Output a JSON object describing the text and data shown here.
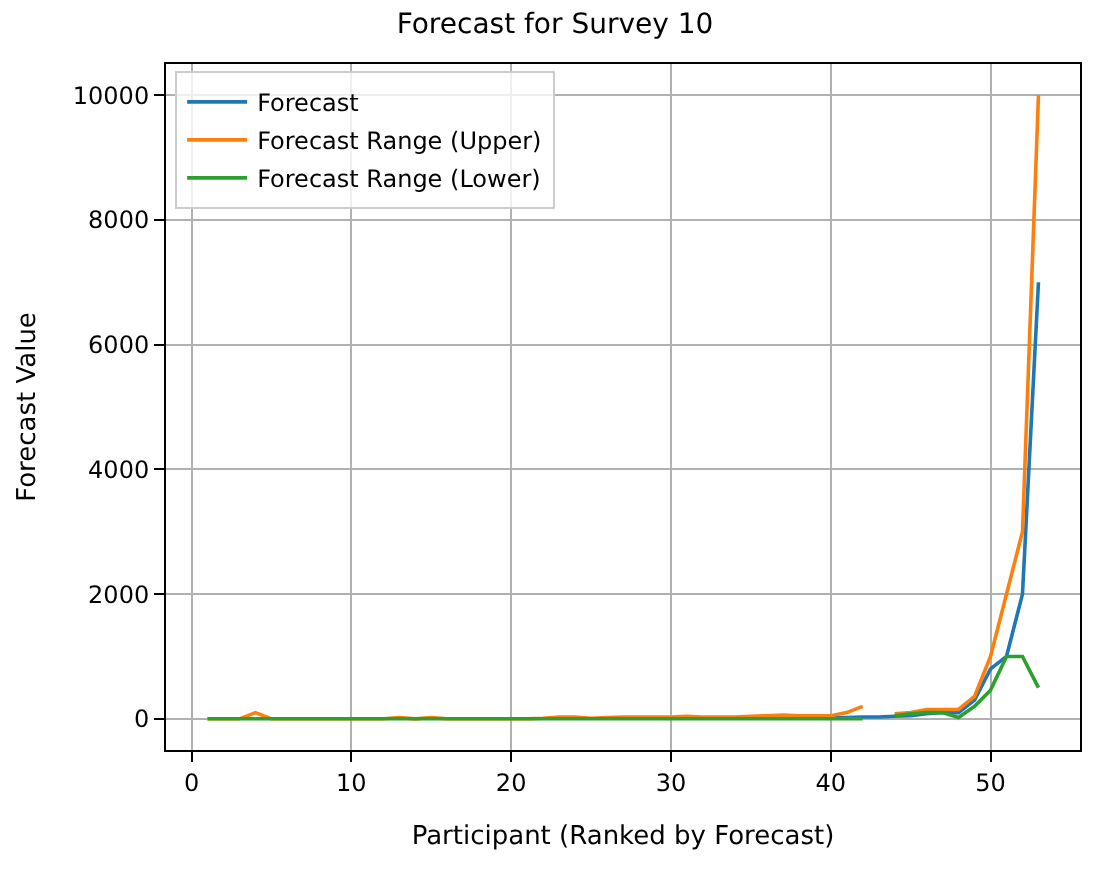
{
  "chart_data": {
    "type": "line",
    "title": "Forecast for Survey 10",
    "xlabel": "Participant (Ranked by Forecast)",
    "ylabel": "Forecast Value",
    "x": [
      1,
      2,
      3,
      4,
      5,
      6,
      7,
      8,
      9,
      10,
      11,
      12,
      13,
      14,
      15,
      16,
      17,
      18,
      19,
      20,
      21,
      22,
      23,
      24,
      25,
      26,
      27,
      28,
      29,
      30,
      31,
      32,
      33,
      34,
      35,
      36,
      37,
      38,
      39,
      40,
      41,
      42,
      43,
      44,
      45,
      46,
      47,
      48,
      49,
      50,
      51,
      52,
      53
    ],
    "series": [
      {
        "name": "Forecast",
        "color": "#1f77b4",
        "values": [
          null,
          null,
          null,
          null,
          null,
          null,
          null,
          null,
          null,
          null,
          null,
          null,
          null,
          null,
          null,
          null,
          null,
          null,
          null,
          null,
          null,
          null,
          null,
          null,
          null,
          null,
          null,
          null,
          null,
          null,
          null,
          null,
          null,
          null,
          null,
          null,
          null,
          null,
          null,
          20,
          20,
          30,
          30,
          40,
          50,
          80,
          100,
          100,
          300,
          800,
          1000,
          2000,
          7000
        ]
      },
      {
        "name": "Forecast Range (Upper)",
        "color": "#ff7f0e",
        "values": [
          0,
          0,
          0,
          100,
          0,
          0,
          0,
          0,
          0,
          0,
          0,
          0,
          20,
          0,
          20,
          0,
          0,
          0,
          0,
          0,
          0,
          10,
          30,
          30,
          10,
          20,
          30,
          30,
          30,
          30,
          40,
          30,
          30,
          30,
          40,
          50,
          60,
          50,
          50,
          50,
          100,
          200,
          null,
          80,
          100,
          150,
          150,
          150,
          360,
          1000,
          2000,
          3000,
          10000
        ]
      },
      {
        "name": "Forecast Range (Lower)",
        "color": "#2ca02c",
        "values": [
          0,
          0,
          0,
          0,
          0,
          0,
          0,
          0,
          0,
          0,
          0,
          0,
          0,
          0,
          0,
          0,
          0,
          0,
          0,
          0,
          0,
          0,
          0,
          0,
          0,
          0,
          0,
          0,
          0,
          0,
          0,
          0,
          0,
          0,
          0,
          0,
          0,
          0,
          0,
          0,
          0,
          0,
          null,
          50,
          80,
          100,
          100,
          20,
          200,
          460,
          1000,
          1000,
          500
        ]
      }
    ],
    "xlim": [
      -1.6,
      55.6
    ],
    "xticks": [
      0,
      10,
      20,
      30,
      40,
      50
    ],
    "ylim": [
      -500,
      10500
    ],
    "yticks": [
      0,
      2000,
      4000,
      6000,
      8000,
      10000
    ],
    "grid": true,
    "legend": "top left"
  }
}
